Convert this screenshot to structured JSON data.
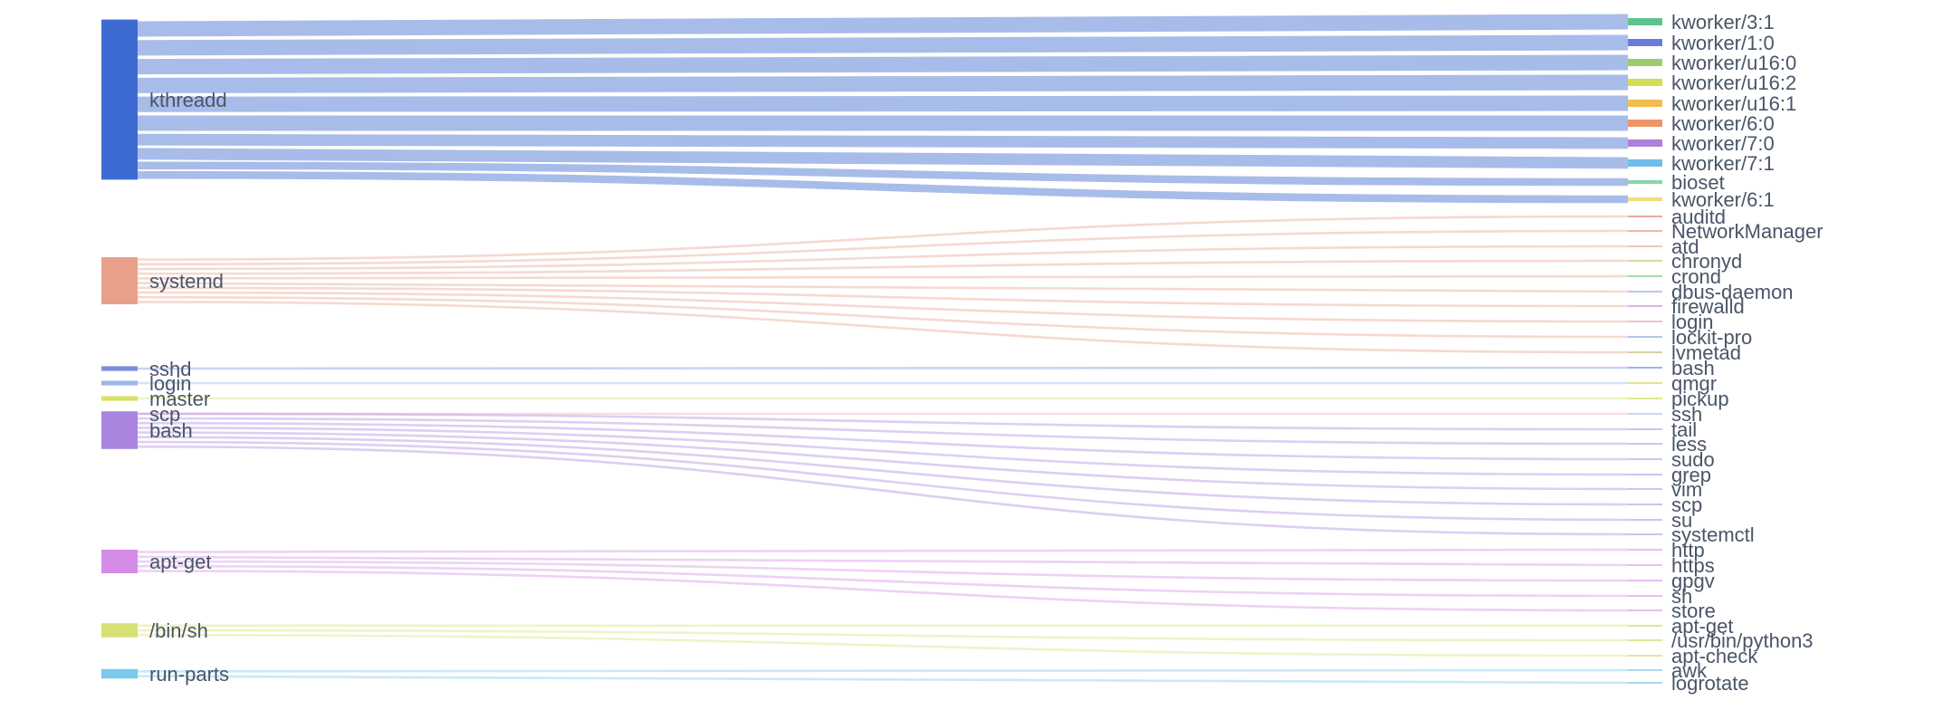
{
  "chart_data": {
    "type": "sankey",
    "title": "",
    "sources": [
      {
        "name": "kthreadd",
        "color": "#3d6bd1"
      },
      {
        "name": "systemd",
        "color": "#e8a08a"
      },
      {
        "name": "sshd",
        "color": "#7b8fe0"
      },
      {
        "name": "login",
        "color": "#9db6ea"
      },
      {
        "name": "master",
        "color": "#d7e26a"
      },
      {
        "name": "scp",
        "color": "#f2a4c4"
      },
      {
        "name": "bash",
        "color": "#a985e0"
      },
      {
        "name": "apt-get",
        "color": "#d58ce6"
      },
      {
        "name": "/bin/sh",
        "color": "#d6e074"
      },
      {
        "name": "run-parts",
        "color": "#78c9ea"
      }
    ],
    "targets": [
      {
        "name": "kworker/3:1",
        "color": "#5cc38d"
      },
      {
        "name": "kworker/1:0",
        "color": "#6a7be0"
      },
      {
        "name": "kworker/u16:0",
        "color": "#9ccc70"
      },
      {
        "name": "kworker/u16:2",
        "color": "#d3dc55"
      },
      {
        "name": "kworker/u16:1",
        "color": "#f2bc50"
      },
      {
        "name": "kworker/6:0",
        "color": "#ef9468"
      },
      {
        "name": "kworker/7:0",
        "color": "#b07fd8"
      },
      {
        "name": "kworker/7:1",
        "color": "#6fbde8"
      },
      {
        "name": "bioset",
        "color": "#86d6a8"
      },
      {
        "name": "kworker/6:1",
        "color": "#ede07a"
      },
      {
        "name": "auditd",
        "color": "#e9a6a6"
      },
      {
        "name": "NetworkManager",
        "color": "#f0b6a0"
      },
      {
        "name": "atd",
        "color": "#f1c6b0"
      },
      {
        "name": "chronyd",
        "color": "#cfe0a0"
      },
      {
        "name": "crond",
        "color": "#a8d8b0"
      },
      {
        "name": "dbus-daemon",
        "color": "#b6c6ee"
      },
      {
        "name": "firewalld",
        "color": "#e0b0e6"
      },
      {
        "name": "login",
        "color": "#f0c0d0"
      },
      {
        "name": "lockit-pro",
        "color": "#b0c8e8"
      },
      {
        "name": "lvmetad",
        "color": "#d8d0a0"
      },
      {
        "name": "bash",
        "color": "#9fb4e6"
      },
      {
        "name": "qmgr",
        "color": "#dfe78a"
      },
      {
        "name": "pickup",
        "color": "#e4e88a"
      },
      {
        "name": "ssh",
        "color": "#c8d8f0"
      },
      {
        "name": "tail",
        "color": "#d4c0f0"
      },
      {
        "name": "less",
        "color": "#d4c0f0"
      },
      {
        "name": "sudo",
        "color": "#d4c0f0"
      },
      {
        "name": "grep",
        "color": "#d4c0f0"
      },
      {
        "name": "vim",
        "color": "#d4c0f0"
      },
      {
        "name": "scp",
        "color": "#d4c0f0"
      },
      {
        "name": "su",
        "color": "#d4c0f0"
      },
      {
        "name": "systemctl",
        "color": "#d4c0f0"
      },
      {
        "name": "http",
        "color": "#e6bff0"
      },
      {
        "name": "https",
        "color": "#e6bff0"
      },
      {
        "name": "gpgv",
        "color": "#e6bff0"
      },
      {
        "name": "sh",
        "color": "#e6bff0"
      },
      {
        "name": "store",
        "color": "#e6bff0"
      },
      {
        "name": "apt-get",
        "color": "#e2e69a"
      },
      {
        "name": "/usr/bin/python3",
        "color": "#e2e69a"
      },
      {
        "name": "apt-check",
        "color": "#e2e69a"
      },
      {
        "name": "awk",
        "color": "#a8d8ee"
      },
      {
        "name": "logrotate",
        "color": "#a8d8ee"
      }
    ],
    "links": [
      {
        "source": "kthreadd",
        "target": "kworker/3:1",
        "value": 4
      },
      {
        "source": "kthreadd",
        "target": "kworker/1:0",
        "value": 4
      },
      {
        "source": "kthreadd",
        "target": "kworker/u16:0",
        "value": 4
      },
      {
        "source": "kthreadd",
        "target": "kworker/u16:2",
        "value": 4
      },
      {
        "source": "kthreadd",
        "target": "kworker/u16:1",
        "value": 4
      },
      {
        "source": "kthreadd",
        "target": "kworker/6:0",
        "value": 4
      },
      {
        "source": "kthreadd",
        "target": "kworker/7:0",
        "value": 3
      },
      {
        "source": "kthreadd",
        "target": "kworker/7:1",
        "value": 3
      },
      {
        "source": "kthreadd",
        "target": "bioset",
        "value": 2
      },
      {
        "source": "kthreadd",
        "target": "kworker/6:1",
        "value": 2
      },
      {
        "source": "systemd",
        "target": "auditd",
        "value": 1
      },
      {
        "source": "systemd",
        "target": "NetworkManager",
        "value": 1
      },
      {
        "source": "systemd",
        "target": "atd",
        "value": 1
      },
      {
        "source": "systemd",
        "target": "chronyd",
        "value": 1
      },
      {
        "source": "systemd",
        "target": "crond",
        "value": 1
      },
      {
        "source": "systemd",
        "target": "dbus-daemon",
        "value": 1
      },
      {
        "source": "systemd",
        "target": "firewalld",
        "value": 1
      },
      {
        "source": "systemd",
        "target": "login",
        "value": 1
      },
      {
        "source": "systemd",
        "target": "lockit-pro",
        "value": 1
      },
      {
        "source": "systemd",
        "target": "lvmetad",
        "value": 1
      },
      {
        "source": "sshd",
        "target": "bash",
        "value": 1
      },
      {
        "source": "login",
        "target": "qmgr",
        "value": 1
      },
      {
        "source": "master",
        "target": "pickup",
        "value": 1
      },
      {
        "source": "scp",
        "target": "ssh",
        "value": 1
      },
      {
        "source": "bash",
        "target": "tail",
        "value": 1
      },
      {
        "source": "bash",
        "target": "less",
        "value": 1
      },
      {
        "source": "bash",
        "target": "sudo",
        "value": 1
      },
      {
        "source": "bash",
        "target": "grep",
        "value": 1
      },
      {
        "source": "bash",
        "target": "vim",
        "value": 1
      },
      {
        "source": "bash",
        "target": "scp",
        "value": 1
      },
      {
        "source": "bash",
        "target": "su",
        "value": 1
      },
      {
        "source": "bash",
        "target": "systemctl",
        "value": 1
      },
      {
        "source": "apt-get",
        "target": "http",
        "value": 1
      },
      {
        "source": "apt-get",
        "target": "https",
        "value": 1
      },
      {
        "source": "apt-get",
        "target": "gpgv",
        "value": 1
      },
      {
        "source": "apt-get",
        "target": "sh",
        "value": 1
      },
      {
        "source": "apt-get",
        "target": "store",
        "value": 1
      },
      {
        "source": "/bin/sh",
        "target": "apt-get",
        "value": 1
      },
      {
        "source": "/bin/sh",
        "target": "/usr/bin/python3",
        "value": 1
      },
      {
        "source": "/bin/sh",
        "target": "apt-check",
        "value": 1
      },
      {
        "source": "run-parts",
        "target": "awk",
        "value": 1
      },
      {
        "source": "run-parts",
        "target": "logrotate",
        "value": 1
      }
    ]
  }
}
